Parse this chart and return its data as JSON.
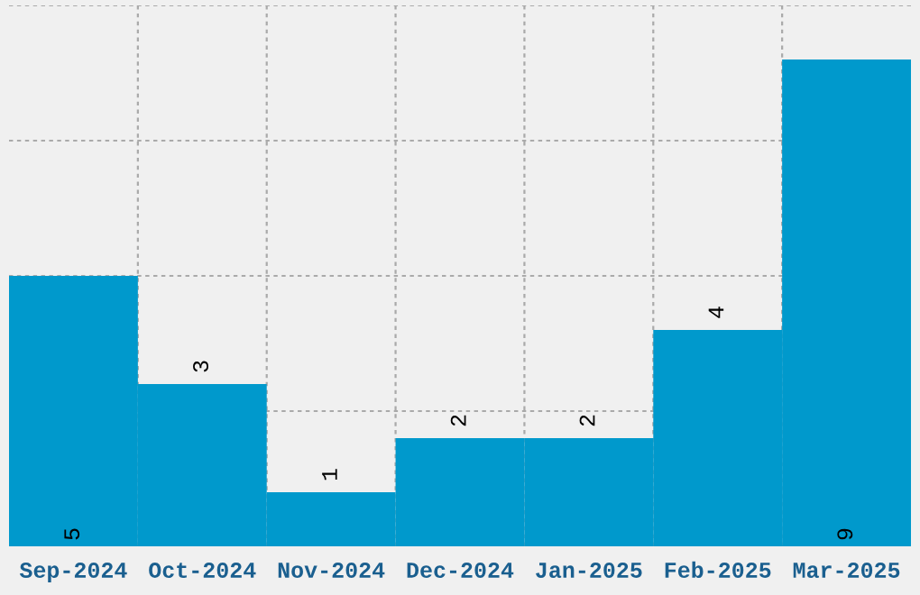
{
  "chart_data": {
    "type": "bar",
    "categories": [
      "Sep-2024",
      "Oct-2024",
      "Nov-2024",
      "Dec-2024",
      "Jan-2025",
      "Feb-2025",
      "Mar-2025"
    ],
    "values": [
      5,
      3,
      1,
      2,
      2,
      4,
      9
    ],
    "color": "#0099cc",
    "ylim": [
      0,
      10
    ],
    "grid": true,
    "data_labels": true,
    "tick_labels": "x"
  }
}
